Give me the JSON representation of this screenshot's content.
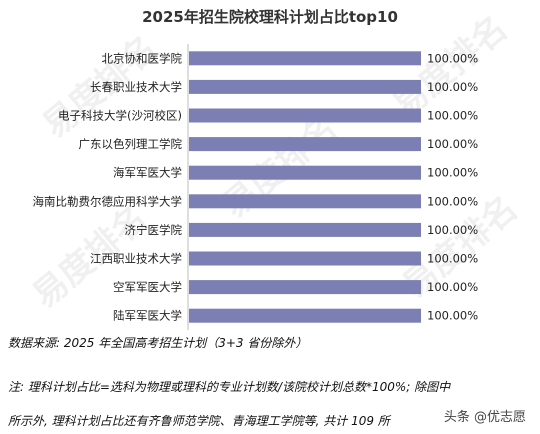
{
  "chart_data": {
    "type": "bar",
    "orientation": "horizontal",
    "title": "2025年招生院校理科计划占比top10",
    "categories": [
      "北京协和医学院",
      "长春职业技术大学",
      "电子科技大学(沙河校区)",
      "广东以色列理工学院",
      "海军军医大学",
      "海南比勒费尔德应用科学大学",
      "济宁医学院",
      "江西职业技术大学",
      "空军军医大学",
      "陆军军医大学"
    ],
    "values": [
      100,
      100,
      100,
      100,
      100,
      100,
      100,
      100,
      100,
      100
    ],
    "value_labels": [
      "100.00%",
      "100.00%",
      "100.00%",
      "100.00%",
      "100.00%",
      "100.00%",
      "100.00%",
      "100.00%",
      "100.00%",
      "100.00%"
    ],
    "xlim": [
      0,
      100
    ],
    "grid": false,
    "legend": "none",
    "bar_color": "#7b7fb3"
  },
  "source": "数据来源: 2025 年全国高考招生计划（3+3 省份除外）",
  "note_line1": "注: 理科计划占比=选科为物理或理科的专业计划数/该院校计划总数*100%; 除图中",
  "note_line2": "所示外, 理科计划占比还有齐鲁师范学院、青海理工学院等, 共计 109 所",
  "watermark": "易度排名",
  "credit": "头条 @优志愿"
}
